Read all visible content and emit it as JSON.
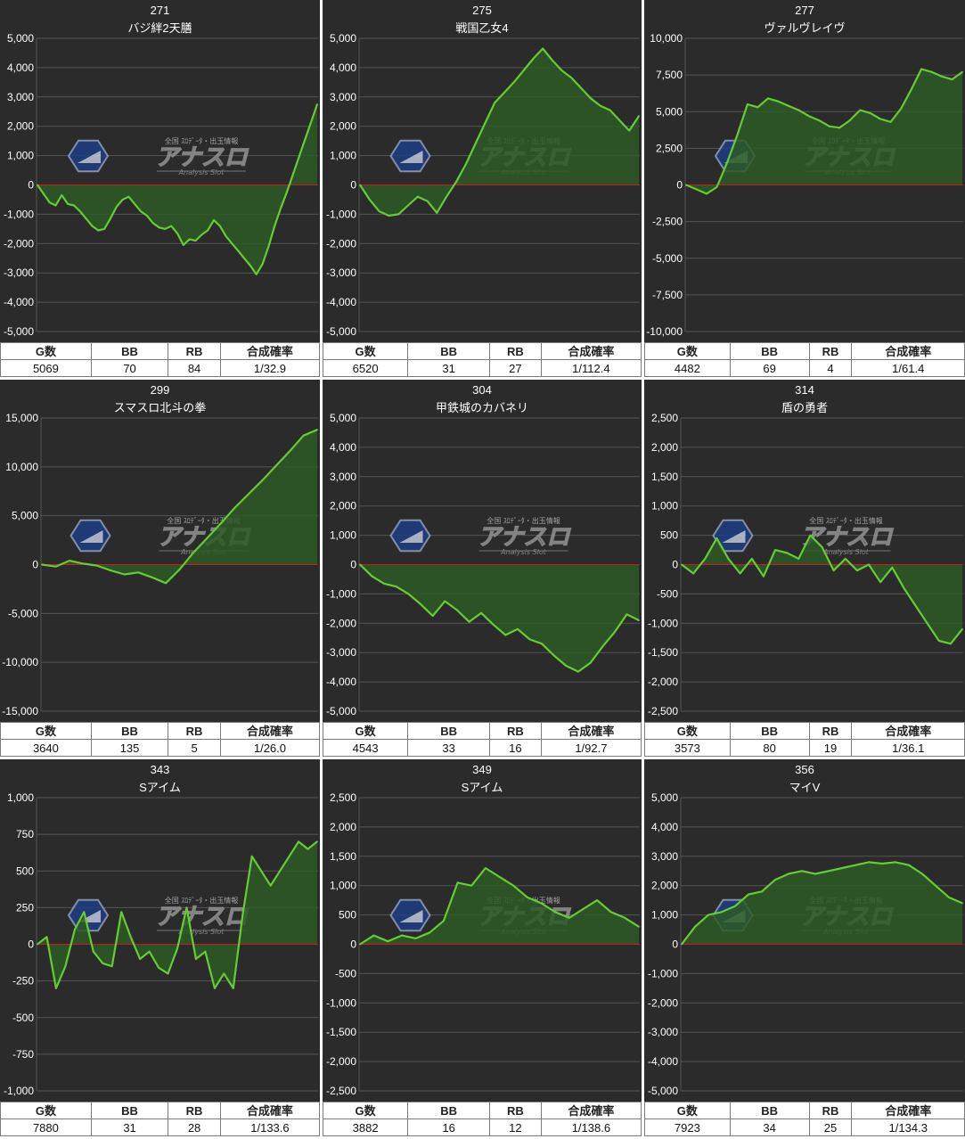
{
  "watermark": {
    "top_text": "全国 ｽﾛﾃﾞｰﾀ・出玉情報",
    "main_text": "アナスロ",
    "sub_text": "Analysis Slot"
  },
  "colors": {
    "background": "#2b2b2b",
    "grid": "#555555",
    "zero_line": "#d11a1a",
    "line": "#66cc33",
    "fill": "#2d5a25",
    "text": "#ffffff"
  },
  "stat_headers": {
    "games": "G数",
    "bb": "BB",
    "rb": "RB",
    "prob": "合成確率"
  },
  "charts": [
    {
      "number": "271",
      "machine": "バジ絆2天膳",
      "stats": {
        "games": "5069",
        "bb": "70",
        "rb": "84",
        "prob": "1/32.9"
      },
      "chart_data": {
        "type": "area",
        "ylim": [
          -5000,
          5000
        ],
        "yticks": [
          5000,
          4000,
          3000,
          2000,
          1000,
          0,
          -1000,
          -2000,
          -3000,
          -4000,
          -5000
        ],
        "ytick_labels": [
          "5,000",
          "4,000",
          "3,000",
          "2,000",
          "1,000",
          "0",
          "-1,000",
          "-2,000",
          "-3,000",
          "-4,000",
          "-5,000"
        ],
        "values": [
          0,
          -300,
          -600,
          -700,
          -350,
          -650,
          -700,
          -900,
          -1150,
          -1400,
          -1550,
          -1500,
          -1150,
          -750,
          -500,
          -400,
          -650,
          -900,
          -1050,
          -1300,
          -1450,
          -1500,
          -1400,
          -1650,
          -2050,
          -1850,
          -1900,
          -1700,
          -1550,
          -1200,
          -1400,
          -1750,
          -2000,
          -2250,
          -2500,
          -2750,
          -3050,
          -2700,
          -2100,
          -1400,
          -800,
          -250,
          350,
          950,
          1550,
          2150,
          2750
        ]
      }
    },
    {
      "number": "275",
      "machine": "戦国乙女4",
      "stats": {
        "games": "6520",
        "bb": "31",
        "rb": "27",
        "prob": "1/112.4"
      },
      "chart_data": {
        "type": "area",
        "ylim": [
          -5000,
          5000
        ],
        "yticks": [
          5000,
          4000,
          3000,
          2000,
          1000,
          0,
          -1000,
          -2000,
          -3000,
          -4000,
          -5000
        ],
        "ytick_labels": [
          "5,000",
          "4,000",
          "3,000",
          "2,000",
          "1,000",
          "0",
          "-1,000",
          "-2,000",
          "-3,000",
          "-4,000",
          "-5,000"
        ],
        "values": [
          0,
          -500,
          -900,
          -1050,
          -1000,
          -700,
          -400,
          -550,
          -950,
          -400,
          100,
          700,
          1400,
          2100,
          2800,
          3150,
          3500,
          3900,
          4300,
          4650,
          4250,
          3900,
          3650,
          3300,
          2950,
          2700,
          2550,
          2200,
          1850,
          2350
        ]
      }
    },
    {
      "number": "277",
      "machine": "ヴァルヴレイヴ",
      "stats": {
        "games": "4482",
        "bb": "69",
        "rb": "4",
        "prob": "1/61.4"
      },
      "chart_data": {
        "type": "area",
        "ylim": [
          -10000,
          10000
        ],
        "yticks": [
          10000,
          7500,
          5000,
          2500,
          0,
          -2500,
          -5000,
          -7500,
          -10000
        ],
        "ytick_labels": [
          "10,000",
          "7,500",
          "5,000",
          "2,500",
          "0",
          "-2,500",
          "-5,000",
          "-7,500",
          "-10,000"
        ],
        "values": [
          0,
          -300,
          -600,
          -150,
          1500,
          3400,
          5500,
          5300,
          5900,
          5700,
          5400,
          5100,
          4700,
          4400,
          4000,
          3900,
          4400,
          5100,
          4900,
          4500,
          4300,
          5200,
          6500,
          7900,
          7700,
          7400,
          7200,
          7700
        ]
      }
    },
    {
      "number": "299",
      "machine": "スマスロ北斗の拳",
      "stats": {
        "games": "3640",
        "bb": "135",
        "rb": "5",
        "prob": "1/26.0"
      },
      "chart_data": {
        "type": "area",
        "ylim": [
          -15000,
          15000
        ],
        "yticks": [
          15000,
          10000,
          5000,
          0,
          -5000,
          -10000,
          -15000
        ],
        "ytick_labels": [
          "15,000",
          "10,000",
          "5,000",
          "0",
          "-5,000",
          "-10,000",
          "-15,000"
        ],
        "values": [
          0,
          -200,
          400,
          100,
          -100,
          -600,
          -1000,
          -800,
          -1300,
          -1900,
          -500,
          1200,
          2700,
          4200,
          5800,
          7200,
          8600,
          10100,
          11600,
          13200,
          13800
        ]
      }
    },
    {
      "number": "304",
      "machine": "甲鉄城のカバネリ",
      "stats": {
        "games": "4543",
        "bb": "33",
        "rb": "16",
        "prob": "1/92.7"
      },
      "chart_data": {
        "type": "area",
        "ylim": [
          -5000,
          5000
        ],
        "yticks": [
          5000,
          4000,
          3000,
          2000,
          1000,
          0,
          -1000,
          -2000,
          -3000,
          -4000,
          -5000
        ],
        "ytick_labels": [
          "5,000",
          "4,000",
          "3,000",
          "2,000",
          "1,000",
          "0",
          "-1,000",
          "-2,000",
          "-3,000",
          "-4,000",
          "-5,000"
        ],
        "values": [
          0,
          -400,
          -650,
          -750,
          -1000,
          -1350,
          -1750,
          -1250,
          -1550,
          -1950,
          -1650,
          -2050,
          -2400,
          -2200,
          -2550,
          -2700,
          -3100,
          -3450,
          -3650,
          -3350,
          -2800,
          -2300,
          -1700,
          -1900
        ]
      }
    },
    {
      "number": "314",
      "machine": "盾の勇者",
      "stats": {
        "games": "3573",
        "bb": "80",
        "rb": "19",
        "prob": "1/36.1"
      },
      "chart_data": {
        "type": "area",
        "ylim": [
          -2500,
          2500
        ],
        "yticks": [
          2500,
          2000,
          1500,
          1000,
          500,
          0,
          -500,
          -1000,
          -1500,
          -2000,
          -2500
        ],
        "ytick_labels": [
          "2,500",
          "2,000",
          "1,500",
          "1,000",
          "500",
          "0",
          "-500",
          "-1,000",
          "-1,500",
          "-2,000",
          "-2,500"
        ],
        "values": [
          0,
          -150,
          100,
          450,
          100,
          -150,
          100,
          -200,
          250,
          200,
          100,
          500,
          300,
          -100,
          100,
          -100,
          0,
          -300,
          -50,
          -400,
          -700,
          -1000,
          -1300,
          -1350,
          -1100
        ]
      }
    },
    {
      "number": "343",
      "machine": "Sアイム",
      "stats": {
        "games": "7880",
        "bb": "31",
        "rb": "28",
        "prob": "1/133.6"
      },
      "chart_data": {
        "type": "area",
        "ylim": [
          -1000,
          1000
        ],
        "yticks": [
          1000,
          750,
          500,
          250,
          0,
          -250,
          -500,
          -750,
          -1000
        ],
        "ytick_labels": [
          "1,000",
          "750",
          "500",
          "250",
          "0",
          "-250",
          "-500",
          "-750",
          "-1,000"
        ],
        "values": [
          0,
          50,
          -300,
          -150,
          100,
          220,
          -50,
          -130,
          -150,
          220,
          50,
          -100,
          -50,
          -160,
          -200,
          -30,
          250,
          -100,
          -50,
          -300,
          -200,
          -300,
          200,
          600,
          500,
          400,
          500,
          600,
          700,
          650,
          700
        ]
      }
    },
    {
      "number": "349",
      "machine": "Sアイム",
      "stats": {
        "games": "3882",
        "bb": "16",
        "rb": "12",
        "prob": "1/138.6"
      },
      "chart_data": {
        "type": "area",
        "ylim": [
          -2500,
          2500
        ],
        "yticks": [
          2500,
          2000,
          1500,
          1000,
          500,
          0,
          -500,
          -1000,
          -1500,
          -2000,
          -2500
        ],
        "ytick_labels": [
          "2,500",
          "2,000",
          "1,500",
          "1,000",
          "500",
          "0",
          "-500",
          "-1,000",
          "-1,500",
          "-2,000",
          "-2,500"
        ],
        "values": [
          0,
          150,
          50,
          150,
          100,
          200,
          400,
          1050,
          1000,
          1300,
          1150,
          1000,
          800,
          700,
          550,
          450,
          600,
          750,
          550,
          450,
          300
        ]
      }
    },
    {
      "number": "356",
      "machine": "マイV",
      "stats": {
        "games": "7923",
        "bb": "34",
        "rb": "25",
        "prob": "1/134.3"
      },
      "chart_data": {
        "type": "area",
        "ylim": [
          -5000,
          5000
        ],
        "yticks": [
          5000,
          4000,
          3000,
          2000,
          1000,
          0,
          -1000,
          -2000,
          -3000,
          -4000,
          -5000
        ],
        "ytick_labels": [
          "5,000",
          "4,000",
          "3,000",
          "2,000",
          "1,000",
          "0",
          "-1,000",
          "-2,000",
          "-3,000",
          "-4,000",
          "-5,000"
        ],
        "values": [
          0,
          600,
          1000,
          1100,
          1300,
          1700,
          1800,
          2200,
          2400,
          2500,
          2400,
          2500,
          2600,
          2700,
          2800,
          2750,
          2800,
          2700,
          2400,
          2000,
          1600,
          1400
        ]
      }
    }
  ]
}
